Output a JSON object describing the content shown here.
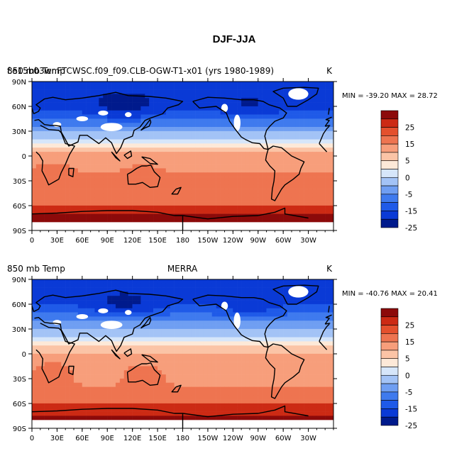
{
  "figure_title": "DJF-JJA",
  "palette": [
    "#001a8c",
    "#0a3ad6",
    "#1f5ae8",
    "#3f7aee",
    "#6f9ef2",
    "#a3c3f6",
    "#d6e6fa",
    "#fde9d8",
    "#fbc4a6",
    "#f79e7b",
    "#ee7450",
    "#e4502d",
    "#cc2a14",
    "#8c0a0a"
  ],
  "continent_color": "#000000",
  "colorbar": {
    "labels": [
      "25",
      "15",
      "5",
      "0",
      "-5",
      "-15",
      "-25"
    ]
  },
  "chart_data": [
    {
      "type": "heatmap",
      "title": "",
      "left_label": "f.e15b03wr.FTCWSC.f09_f09.CLB-OGW-T1-x01 (yrs 1980-1989)",
      "left_label_overlay": "850 mb Temp",
      "center_label": "",
      "right_label": "K",
      "stats": {
        "min_label": "MIN = -39.20",
        "max_label": "MAX =  28.72",
        "min": -39.2,
        "max": 28.72
      },
      "x_ticks": [
        "0",
        "30E",
        "60E",
        "90E",
        "120E",
        "150E",
        "180",
        "150W",
        "120W",
        "90W",
        "60W",
        "30W"
      ],
      "y_ticks": [
        "90N",
        "60N",
        "30N",
        "0",
        "30S",
        "60S",
        "90S"
      ],
      "xlim": [
        0,
        360
      ],
      "ylim": [
        -90,
        90
      ],
      "units": "K"
    },
    {
      "type": "heatmap",
      "title": "",
      "left_label": "850 mb Temp",
      "center_label": "MERRA",
      "right_label": "K",
      "stats": {
        "min_label": "MIN = -40.76",
        "max_label": "MAX =  20.41",
        "min": -40.76,
        "max": 20.41
      },
      "x_ticks": [
        "0",
        "30E",
        "60E",
        "90E",
        "120E",
        "150E",
        "180",
        "150W",
        "120W",
        "90W",
        "60W",
        "30W"
      ],
      "y_ticks": [
        "90N",
        "60N",
        "30N",
        "0",
        "30S",
        "60S",
        "90S"
      ],
      "xlim": [
        0,
        360
      ],
      "ylim": [
        -90,
        90
      ],
      "units": "K"
    }
  ]
}
